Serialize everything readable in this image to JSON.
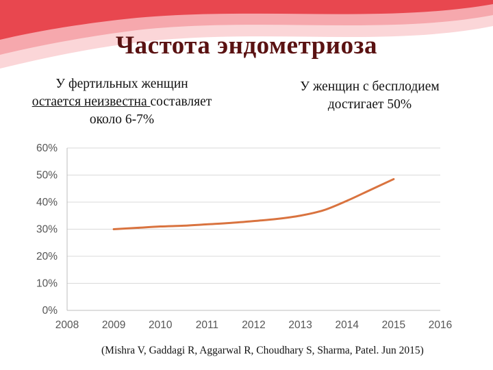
{
  "slide": {
    "title": "Частота эндометриоза",
    "note_left": {
      "line1": "У фертильных женщин",
      "line2_underlined": "остается неизвестна ",
      "line2_rest": "составляет",
      "line3": "около 6-7%"
    },
    "note_right": {
      "line1": "У женщин с бесплодием",
      "line2": "достигает 50%"
    },
    "citation": "(Mishra V, Gaddagi R, Aggarwal R, Choudhary S, Sharma, Patel. Jun 2015)"
  },
  "colors": {
    "line": "#d9733f",
    "title": "#5a1212",
    "swoosh_dark": "#e8474f",
    "swoosh_light": "#f6b8bb",
    "grid": "#d9d9d9"
  },
  "chart_data": {
    "type": "line",
    "title": "",
    "xlabel": "",
    "ylabel": "",
    "xlim": [
      2008,
      2016
    ],
    "ylim": [
      0,
      60
    ],
    "x_ticks": [
      "2008",
      "2009",
      "2010",
      "2011",
      "2012",
      "2013",
      "2014",
      "2015",
      "2016"
    ],
    "y_ticks": [
      "0%",
      "10%",
      "20%",
      "30%",
      "40%",
      "50%",
      "60%"
    ],
    "grid": true,
    "legend": "none",
    "series": [
      {
        "x": [
          2009,
          2009.5,
          2010,
          2010.5,
          2011,
          2011.5,
          2012,
          2012.5,
          2013,
          2013.5,
          2014,
          2014.5,
          2015
        ],
        "y": [
          30,
          30.5,
          31,
          31.3,
          31.8,
          32.3,
          33,
          33.8,
          35,
          37,
          40.5,
          44.5,
          48.5
        ]
      }
    ]
  }
}
